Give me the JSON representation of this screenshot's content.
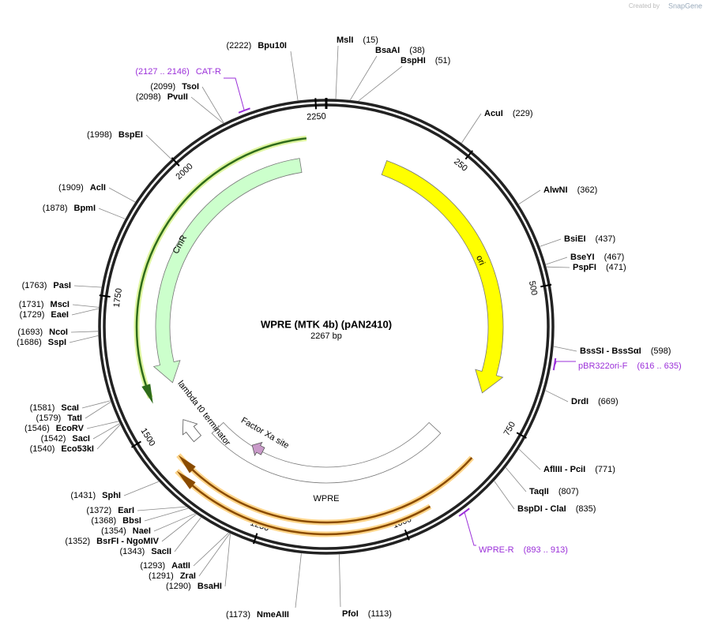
{
  "header": {
    "credit": "Created by",
    "brand": "SnapGene"
  },
  "map": {
    "name": "WPRE (MTK 4b) (pAN2410)",
    "length": "2267 bp",
    "ticks": [
      250,
      500,
      750,
      1000,
      1250,
      1500,
      1750,
      2000,
      2250
    ]
  },
  "enzymes": [
    {
      "name": "MslI",
      "position": "(15)"
    },
    {
      "name": "BsaAI",
      "position": "(38)"
    },
    {
      "name": "BspHI",
      "position": "(51)"
    },
    {
      "name": "AcuI",
      "position": "(229)"
    },
    {
      "name": "AlwNI",
      "position": "(362)"
    },
    {
      "name": "BsiEI",
      "position": "(437)"
    },
    {
      "name": "BseYI",
      "position": "(467)"
    },
    {
      "name": "PspFI",
      "position": "(471)"
    },
    {
      "name": "BssSI - BssSαI",
      "position": "(598)"
    },
    {
      "name": "DrdI",
      "position": "(669)"
    },
    {
      "name": "AflIII - PciI",
      "position": "(771)"
    },
    {
      "name": "TaqII",
      "position": "(807)"
    },
    {
      "name": "BspDI - ClaI",
      "position": "(835)"
    },
    {
      "name": "PfoI",
      "position": "(1113)"
    },
    {
      "name": "Bpu10I",
      "position": "(2222)"
    },
    {
      "name": "TsoI",
      "position": "(2099)"
    },
    {
      "name": "PvuII",
      "position": "(2098)"
    },
    {
      "name": "BspEI",
      "position": "(1998)"
    },
    {
      "name": "AclI",
      "position": "(1909)"
    },
    {
      "name": "BpmI",
      "position": "(1878)"
    },
    {
      "name": "PasI",
      "position": "(1763)"
    },
    {
      "name": "MscI",
      "position": "(1731)"
    },
    {
      "name": "EaeI",
      "position": "(1729)"
    },
    {
      "name": "NcoI",
      "position": "(1693)"
    },
    {
      "name": "SspI",
      "position": "(1686)"
    },
    {
      "name": "ScaI",
      "position": "(1581)"
    },
    {
      "name": "TatI",
      "position": "(1579)"
    },
    {
      "name": "EcoRV",
      "position": "(1546)"
    },
    {
      "name": "SacI",
      "position": "(1542)"
    },
    {
      "name": "Eco53kI",
      "position": "(1540)"
    },
    {
      "name": "SphI",
      "position": "(1431)"
    },
    {
      "name": "EarI",
      "position": "(1372)"
    },
    {
      "name": "BbsI",
      "position": "(1368)"
    },
    {
      "name": "NaeI",
      "position": "(1354)"
    },
    {
      "name": "BsrFI - NgoMIV",
      "position": "(1352)"
    },
    {
      "name": "SacII",
      "position": "(1343)"
    },
    {
      "name": "AatII",
      "position": "(1293)"
    },
    {
      "name": "ZraI",
      "position": "(1291)"
    },
    {
      "name": "BsaHI",
      "position": "(1290)"
    },
    {
      "name": "NmeAIII",
      "position": "(1173)"
    }
  ],
  "primers": [
    {
      "name": "CAT-R",
      "range": "(2127 .. 2146)"
    },
    {
      "name": "pBR322ori-F",
      "range": "(616 .. 635)"
    },
    {
      "name": "WPRE-R",
      "range": "(893 .. 913)"
    }
  ],
  "features": [
    {
      "label": "ori"
    },
    {
      "label": "CmR"
    },
    {
      "label": "WPRE"
    },
    {
      "label": "lambda t0 terminator"
    },
    {
      "label": "Factor Xa site"
    }
  ]
}
